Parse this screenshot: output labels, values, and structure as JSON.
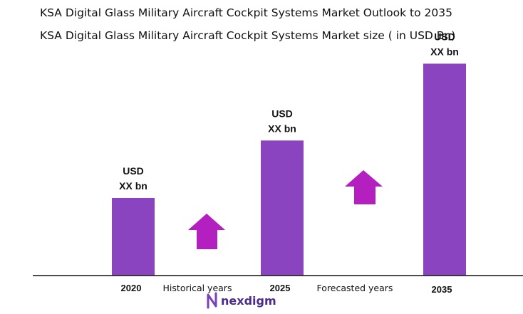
{
  "header": {
    "title": "KSA Digital Glass Military Aircraft Cockpit Systems Market Outlook to 2035",
    "subtitle": "KSA Digital Glass Military Aircraft Cockpit Systems Market size ( in USD Bn)"
  },
  "chart_data": {
    "type": "bar",
    "title": "KSA Digital Glass Military Aircraft Cockpit Systems Market Outlook to 2035",
    "subtitle": "KSA Digital Glass Military Aircraft Cockpit Systems Market size ( in USD Bn)",
    "categories": [
      "2020",
      "2025",
      "2035"
    ],
    "values": [
      1,
      1.74,
      2.73
    ],
    "value_labels": [
      [
        "USD",
        "XX bn"
      ],
      [
        "USD",
        "XX bn"
      ],
      [
        "USD",
        "XX bn"
      ]
    ],
    "period_labels": [
      "Historical years",
      "Forecasted years"
    ],
    "ylim": [
      0,
      3
    ],
    "grid": false,
    "legend": "none",
    "colors": {
      "bar": "#8a44c0",
      "arrow": "#b41fc0",
      "axis": "#111111"
    }
  },
  "arrows": [
    {
      "name": "growth-arrow-historical",
      "icon": "up-arrow-icon"
    },
    {
      "name": "growth-arrow-forecast",
      "icon": "up-arrow-icon"
    }
  ],
  "logo": {
    "text": "nexdigm",
    "icon": "nexdigm-logo-icon"
  }
}
